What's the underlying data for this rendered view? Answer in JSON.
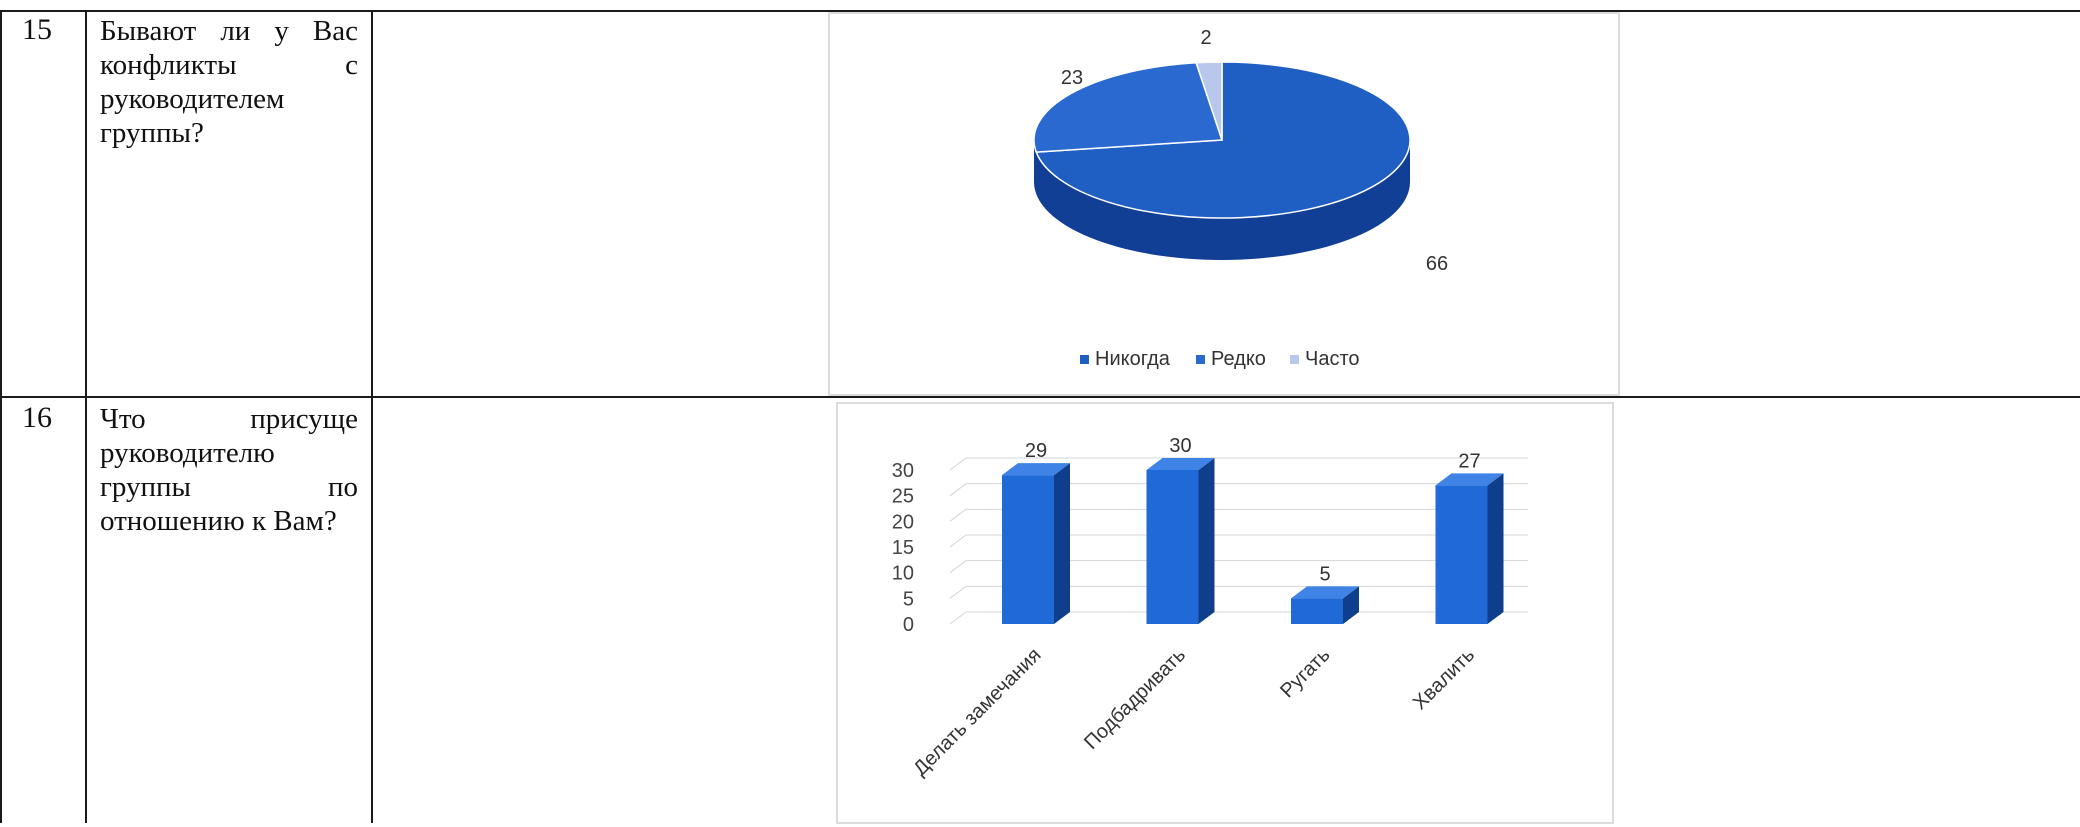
{
  "rows": [
    {
      "number": "15",
      "question": "Бывают ли у Вас конфликты с руководителем группы?",
      "chart_data": {
        "type": "pie",
        "title": "",
        "labels": [
          "Никогда",
          "Редко",
          "Часто"
        ],
        "values": [
          66,
          23,
          2
        ],
        "colors": [
          "#1f5fc4",
          "#2a69d0",
          "#b8c8ec"
        ],
        "legend": "bottom"
      }
    },
    {
      "number": "16",
      "question": "Что присуще руководителю группы по отношению к Вам?",
      "chart_data": {
        "type": "bar",
        "title": "",
        "categories": [
          "Делать замечания",
          "Подбадривать",
          "Ругать",
          "Хвалить"
        ],
        "values": [
          29,
          30,
          5,
          27
        ],
        "ylim": [
          0,
          30
        ],
        "yticks": [
          "0",
          "5",
          "10",
          "15",
          "20",
          "25",
          "30"
        ],
        "grid": true,
        "color": "#1f6ad6"
      }
    }
  ]
}
